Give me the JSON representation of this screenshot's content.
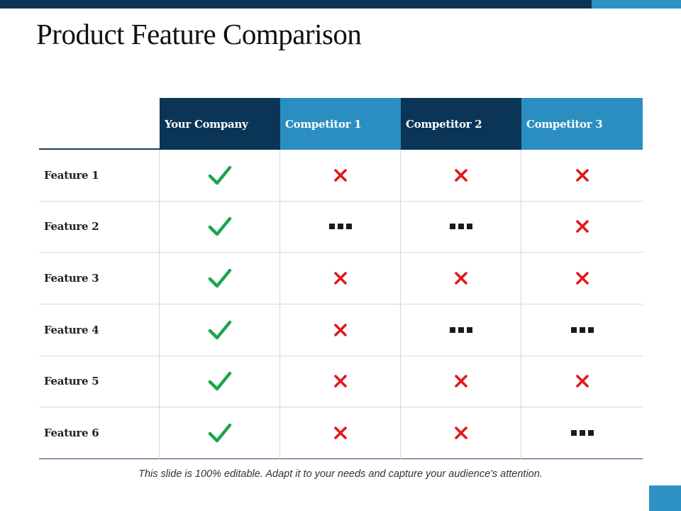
{
  "slide": {
    "title": "Product Feature Comparison",
    "footer_note": "This slide is 100% editable. Adapt it to your needs and capture your audience's attention."
  },
  "colors": {
    "header_dark": "#0a3556",
    "header_light": "#2a8ec1",
    "check": "#1aa64a",
    "cross": "#e0191e",
    "partial": "#1a1a1a"
  },
  "table": {
    "columns": [
      "Your Company",
      "Competitor 1",
      "Competitor 2",
      "Competitor 3"
    ],
    "rows": [
      {
        "feature": "Feature 1",
        "values": [
          "check",
          "cross",
          "cross",
          "cross"
        ]
      },
      {
        "feature": "Feature 2",
        "values": [
          "check",
          "partial",
          "partial",
          "cross"
        ]
      },
      {
        "feature": "Feature 3",
        "values": [
          "check",
          "cross",
          "cross",
          "cross"
        ]
      },
      {
        "feature": "Feature 4",
        "values": [
          "check",
          "cross",
          "partial",
          "partial"
        ]
      },
      {
        "feature": "Feature 5",
        "values": [
          "check",
          "cross",
          "cross",
          "cross"
        ]
      },
      {
        "feature": "Feature 6",
        "values": [
          "check",
          "cross",
          "cross",
          "partial"
        ]
      }
    ]
  }
}
